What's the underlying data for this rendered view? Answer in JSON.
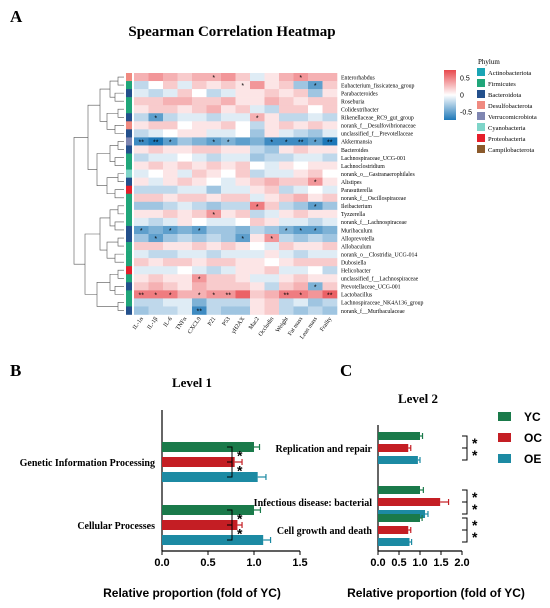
{
  "chart_data": [
    {
      "type": "heatmap",
      "panel_label": "A",
      "title": "Spearman Correlation Heatmap",
      "rows": [
        "Enterorhabdus",
        "Eubacterium_fissicatena_group",
        "Parabacteroides",
        "Roseburia",
        "Colidextribacter",
        "Rikenellaceae_RC9_gut_group",
        "norank_f__Desulfovibrionaceae",
        "unclassified_f__Prevotellaceae",
        "Akkermansia",
        "Bacteroides",
        "Lachnospiraceae_UCG-001",
        "Lachnoclostridium",
        "norank_o__Gastranaerophilales",
        "Alistipes",
        "Parasutterella",
        "norank_f__Oscillospiraceae",
        "Ileibacterium",
        "Tyzzerella",
        "norank_f__Lachnospiraceae",
        "Muribaculum",
        "Alloprevotella",
        "Allobaculum",
        "norank_o__Clostridia_UCG-014",
        "Dubosiella",
        "Helicobacter",
        "unclassified_f__Lachnospiraceae",
        "Prevotellaceae_UCG-001",
        "Lactobacillus",
        "Lachnospiraceae_NK4A136_group",
        "norank_f__Muribaculaceae"
      ],
      "columns": [
        "IL-1α",
        "IL-1β",
        "IL-6",
        "TNFα",
        "CXCL9",
        "P21",
        "P53",
        "γH2AX",
        "Mac2",
        "Occludin",
        "Weight",
        "Fat mass",
        "Lean mass",
        "Frailty"
      ],
      "phylum_index": [
        3,
        1,
        2,
        1,
        1,
        2,
        3,
        2,
        4,
        2,
        1,
        1,
        5,
        2,
        6,
        1,
        1,
        1,
        1,
        2,
        2,
        1,
        1,
        1,
        6,
        1,
        2,
        1,
        1,
        2
      ],
      "values": [
        [
          0.3,
          0.4,
          0.3,
          0.2,
          0.3,
          0.3,
          0.4,
          0.2,
          -0.1,
          0.1,
          0.3,
          0.4,
          0.3,
          0.3
        ],
        [
          -0.2,
          0.0,
          0.2,
          -0.1,
          0.2,
          0.1,
          0.2,
          0.1,
          0.4,
          0.1,
          0.2,
          -0.3,
          -0.5,
          0.2
        ],
        [
          -0.1,
          -0.2,
          -0.1,
          0.2,
          0.0,
          -0.2,
          -0.1,
          0.1,
          0.1,
          0.2,
          0.1,
          0.2,
          -0.3,
          0.1
        ],
        [
          0.2,
          0.2,
          0.3,
          0.3,
          0.2,
          0.2,
          0.3,
          0.1,
          0.1,
          0.3,
          0.2,
          0.1,
          0.2,
          0.2
        ],
        [
          0.1,
          0.2,
          0.2,
          0.1,
          0.2,
          0.3,
          0.1,
          0.2,
          -0.1,
          -0.2,
          0.2,
          0.2,
          0.0,
          0.2
        ],
        [
          -0.2,
          -0.5,
          -0.2,
          -0.1,
          -0.1,
          -0.2,
          -0.1,
          -0.1,
          0.3,
          0.1,
          -0.2,
          -0.2,
          -0.1,
          -0.2
        ],
        [
          0.1,
          0.2,
          0.2,
          0.0,
          0.1,
          0.1,
          0.2,
          0.0,
          -0.2,
          0.1,
          0.2,
          0.1,
          0.2,
          0.1
        ],
        [
          -0.2,
          -0.1,
          0.0,
          0.1,
          0.1,
          -0.1,
          -0.1,
          0.0,
          -0.3,
          0.1,
          -0.1,
          -0.2,
          -0.3,
          -0.1
        ],
        [
          -0.6,
          -0.7,
          -0.5,
          -0.3,
          -0.4,
          -0.5,
          -0.4,
          -0.5,
          -0.4,
          -0.6,
          -0.6,
          -0.6,
          -0.5,
          -0.7
        ],
        [
          0.1,
          0.2,
          0.1,
          0.1,
          0.2,
          0.2,
          0.1,
          0.1,
          -0.2,
          -0.3,
          0.1,
          0.2,
          0.1,
          0.1
        ],
        [
          -0.2,
          -0.1,
          -0.1,
          0.0,
          -0.1,
          -0.2,
          -0.1,
          -0.1,
          -0.3,
          -0.2,
          -0.2,
          -0.1,
          -0.1,
          -0.2
        ],
        [
          0.1,
          0.2,
          0.1,
          0.2,
          0.1,
          0.2,
          0.1,
          0.2,
          0.0,
          -0.1,
          0.1,
          0.0,
          0.1,
          0.1
        ],
        [
          -0.1,
          0.0,
          0.1,
          -0.1,
          0.2,
          0.1,
          0.0,
          0.2,
          -0.2,
          -0.1,
          -0.1,
          0.1,
          0.2,
          0.0
        ],
        [
          0.1,
          -0.1,
          0.1,
          0.2,
          0.1,
          0.0,
          -0.1,
          0.1,
          0.2,
          0.3,
          0.2,
          0.2,
          0.4,
          0.1
        ],
        [
          -0.2,
          -0.2,
          -0.2,
          -0.1,
          -0.1,
          -0.3,
          -0.1,
          -0.1,
          0.1,
          0.2,
          -0.2,
          -0.1,
          0.0,
          -0.1
        ],
        [
          0.2,
          0.2,
          0.1,
          0.2,
          0.2,
          0.1,
          0.2,
          0.2,
          -0.1,
          0.1,
          0.2,
          0.3,
          0.1,
          0.2
        ],
        [
          -0.3,
          -0.3,
          -0.2,
          -0.1,
          -0.2,
          -0.3,
          -0.2,
          -0.2,
          0.5,
          0.2,
          -0.2,
          -0.3,
          -0.5,
          -0.3
        ],
        [
          0.1,
          0.1,
          0.2,
          0.1,
          0.2,
          0.4,
          0.1,
          0.2,
          -0.2,
          -0.1,
          0.1,
          0.2,
          0.1,
          0.1
        ],
        [
          -0.1,
          -0.2,
          -0.1,
          0.1,
          0.0,
          -0.1,
          -0.1,
          0.0,
          0.2,
          0.1,
          -0.1,
          -0.1,
          -0.2,
          -0.1
        ],
        [
          -0.5,
          -0.4,
          -0.5,
          -0.4,
          -0.5,
          -0.3,
          -0.3,
          -0.4,
          -0.2,
          -0.3,
          -0.4,
          -0.5,
          -0.5,
          -0.4
        ],
        [
          -0.3,
          -0.5,
          -0.3,
          -0.2,
          -0.3,
          -0.2,
          -0.3,
          -0.5,
          0.1,
          0.4,
          -0.2,
          -0.3,
          -0.2,
          -0.3
        ],
        [
          0.2,
          0.2,
          0.1,
          0.1,
          0.2,
          0.1,
          0.2,
          0.1,
          0.0,
          -0.1,
          0.2,
          0.1,
          0.1,
          0.2
        ],
        [
          -0.1,
          -0.2,
          -0.2,
          -0.1,
          -0.1,
          -0.2,
          -0.1,
          -0.1,
          -0.1,
          0.1,
          -0.1,
          -0.2,
          -0.1,
          -0.1
        ],
        [
          0.2,
          0.1,
          0.2,
          0.2,
          0.1,
          0.2,
          0.2,
          0.1,
          0.1,
          0.0,
          0.1,
          0.2,
          0.2,
          0.2
        ],
        [
          -0.1,
          -0.1,
          -0.1,
          0.0,
          -0.1,
          -0.2,
          -0.1,
          0.1,
          0.1,
          0.2,
          -0.1,
          -0.1,
          0.0,
          -0.2
        ],
        [
          0.1,
          0.2,
          0.1,
          0.1,
          0.4,
          0.2,
          0.2,
          0.1,
          -0.1,
          -0.1,
          0.1,
          0.2,
          0.1,
          0.1
        ],
        [
          0.2,
          0.3,
          0.2,
          0.1,
          0.3,
          0.2,
          0.2,
          0.2,
          0.1,
          -0.2,
          0.2,
          0.3,
          -0.4,
          0.2
        ],
        [
          0.5,
          0.5,
          0.5,
          0.3,
          0.3,
          0.4,
          0.4,
          0.6,
          0.2,
          0.3,
          0.5,
          0.5,
          0.4,
          0.6
        ],
        [
          -0.2,
          -0.2,
          -0.1,
          -0.1,
          -0.4,
          -0.2,
          -0.2,
          -0.2,
          0.1,
          0.2,
          -0.2,
          -0.1,
          -0.3,
          -0.2
        ],
        [
          -0.3,
          -0.2,
          -0.2,
          -0.1,
          -0.6,
          -0.2,
          -0.3,
          -0.3,
          0.1,
          0.2,
          -0.2,
          -0.3,
          -0.2,
          -0.3
        ]
      ],
      "stars": [
        [
          0,
          5,
          "*"
        ],
        [
          0,
          11,
          "*"
        ],
        [
          1,
          7,
          "*"
        ],
        [
          1,
          12,
          "*"
        ],
        [
          5,
          1,
          "*"
        ],
        [
          5,
          8,
          "*"
        ],
        [
          8,
          0,
          "**"
        ],
        [
          8,
          1,
          "**"
        ],
        [
          8,
          2,
          "*"
        ],
        [
          8,
          5,
          "*"
        ],
        [
          8,
          6,
          "*"
        ],
        [
          8,
          9,
          "*"
        ],
        [
          8,
          10,
          "*"
        ],
        [
          8,
          11,
          "**"
        ],
        [
          8,
          12,
          "*"
        ],
        [
          8,
          13,
          "**"
        ],
        [
          13,
          12,
          "*"
        ],
        [
          16,
          8,
          "*"
        ],
        [
          16,
          12,
          "*"
        ],
        [
          17,
          5,
          "*"
        ],
        [
          19,
          0,
          "*"
        ],
        [
          19,
          2,
          "*"
        ],
        [
          19,
          4,
          "*"
        ],
        [
          19,
          10,
          "*"
        ],
        [
          19,
          11,
          "*"
        ],
        [
          19,
          12,
          "*"
        ],
        [
          20,
          1,
          "*"
        ],
        [
          20,
          7,
          "*"
        ],
        [
          20,
          9,
          "*"
        ],
        [
          25,
          4,
          "*"
        ],
        [
          26,
          12,
          "*"
        ],
        [
          27,
          0,
          "**"
        ],
        [
          27,
          1,
          "*"
        ],
        [
          27,
          2,
          "*"
        ],
        [
          27,
          4,
          "*"
        ],
        [
          27,
          5,
          "*"
        ],
        [
          27,
          6,
          "**"
        ],
        [
          27,
          10,
          "**"
        ],
        [
          27,
          11,
          "*"
        ],
        [
          27,
          13,
          "**"
        ],
        [
          29,
          4,
          "**"
        ]
      ],
      "colorbar_ticks": [
        "0.5",
        "0",
        "-0.5"
      ],
      "legend_title": "Phylum",
      "legend": [
        {
          "name": "Actinobacteriota",
          "color": "#1aa5b5"
        },
        {
          "name": "Firmicutes",
          "color": "#20a67a"
        },
        {
          "name": "Bacteroidota",
          "color": "#23508c"
        },
        {
          "name": "Desulfobacterota",
          "color": "#f08a80"
        },
        {
          "name": "Verrucomicrobiota",
          "color": "#7f86b2"
        },
        {
          "name": "Cyanobacteria",
          "color": "#7fd5c9"
        },
        {
          "name": "Proteobacteria",
          "color": "#e51f2b"
        },
        {
          "name": "Campilobacterota",
          "color": "#8b5a2b"
        }
      ],
      "colors": {
        "high": "#e8484d",
        "mid": "#ffffff",
        "low": "#1e78b8"
      }
    },
    {
      "type": "bar",
      "panel_label": "B",
      "title": "Level 1",
      "categories": [
        "Genetic Information Processing",
        "Cellular Processes"
      ],
      "series": [
        {
          "name": "YC",
          "values": [
            1.0,
            1.0
          ],
          "errors": [
            0.06,
            0.07
          ],
          "color": "#1a7a4a"
        },
        {
          "name": "OC",
          "values": [
            0.79,
            0.82
          ],
          "errors": [
            0.08,
            0.05
          ],
          "color": "#c41e24"
        },
        {
          "name": "OE",
          "values": [
            1.04,
            1.1
          ],
          "errors": [
            0.09,
            0.08
          ],
          "color": "#1c8aa3"
        }
      ],
      "xlabel": "Relative proportion (fold of YC)",
      "xlim": [
        0.0,
        1.5
      ],
      "xticks": [
        "0.0",
        "0.5",
        "1.0",
        "1.5"
      ],
      "significance": "*"
    },
    {
      "type": "bar",
      "panel_label": "C",
      "title": "Level 2",
      "categories": [
        "Replication and repair",
        "Infectious disease: bacterial",
        "Cell growth and death"
      ],
      "series": [
        {
          "name": "YC",
          "values": [
            1.0,
            1.0,
            1.0
          ],
          "errors": [
            0.06,
            0.08,
            0.05
          ],
          "color": "#1a7a4a"
        },
        {
          "name": "OC",
          "values": [
            0.72,
            1.48,
            0.72
          ],
          "errors": [
            0.06,
            0.2,
            0.06
          ],
          "color": "#c41e24"
        },
        {
          "name": "OE",
          "values": [
            0.95,
            1.12,
            0.75
          ],
          "errors": [
            0.05,
            0.07,
            0.05
          ],
          "color": "#1c8aa3"
        }
      ],
      "xlabel": "Relative proportion (fold of YC)",
      "xlim": [
        0.0,
        2.0
      ],
      "xticks": [
        "0.0",
        "0.5",
        "1.0",
        "1.5",
        "2.0"
      ],
      "significance": "*",
      "legend": [
        "YC",
        "OC",
        "OE"
      ]
    }
  ]
}
